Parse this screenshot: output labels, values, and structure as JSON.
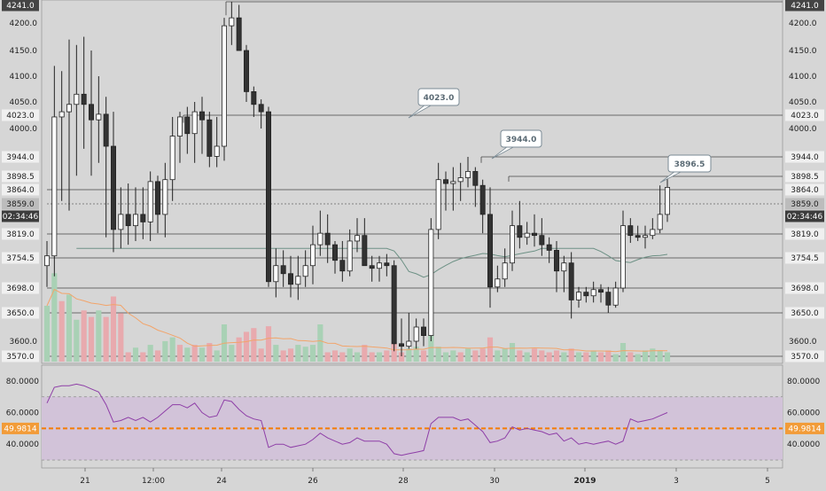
{
  "colors": {
    "background": "#d6d6d6",
    "rsi_band": "#d2c3d9",
    "rsi_line": "#8e3ea7",
    "rsi_mid_line": "#f57c00",
    "rsi_badge": "#f29c38",
    "candle_up_fill": "#ffffff",
    "candle_down_fill": "#333333",
    "volume_up": "#a9d1b5",
    "volume_down": "#e8aaae",
    "ma_line": "#6d9185",
    "volume_ma_line": "#f2a46a",
    "crosshair_badge": "#3c3c3c"
  },
  "price_axis": {
    "ticks": [
      "4241.0",
      "4200.0",
      "4150.0",
      "4100.0",
      "4050.0",
      "4000.0",
      "3600.0"
    ],
    "level_labels": [
      "4023.0",
      "3944.0",
      "3898.5",
      "3864.0",
      "3859.0",
      "3819.0",
      "3754.5",
      "3698.0",
      "3650.0",
      "3570.0"
    ],
    "highlight_label": "3859.0",
    "crosshair_time": "02:34:46"
  },
  "rsi_axis": {
    "ticks": [
      "80.0000",
      "60.0000",
      "40.0000"
    ],
    "current_value": "49.9814"
  },
  "time_axis": {
    "labels": [
      "21",
      "12:00",
      "24",
      "26",
      "28",
      "30",
      "2019",
      "3",
      "5"
    ]
  },
  "callouts": [
    "4023.0",
    "3944.0",
    "3896.5"
  ],
  "chart_data": [
    {
      "type": "candlestick",
      "title": "",
      "ylabel": "",
      "yscale": "compressed-non-linear",
      "horizontal_levels": [
        4241.0,
        4023.0,
        3944.0,
        3898.5,
        3864.0,
        3859.0,
        3819.0,
        3754.5,
        3698.0,
        3650.0,
        3570.0
      ],
      "annotations": [
        {
          "label": "4023.0",
          "price": 4023.0
        },
        {
          "label": "3944.0",
          "price": 3944.0
        },
        {
          "label": "3896.5",
          "price": 3896.5
        }
      ],
      "candles": [
        {
          "o": 3740,
          "h": 3800,
          "l": 3700,
          "c": 3760
        },
        {
          "o": 3760,
          "h": 4120,
          "l": 3720,
          "c": 4020
        },
        {
          "o": 4020,
          "h": 4110,
          "l": 3860,
          "c": 4030
        },
        {
          "o": 4030,
          "h": 4170,
          "l": 3850,
          "c": 4045
        },
        {
          "o": 4045,
          "h": 4160,
          "l": 3900,
          "c": 4065
        },
        {
          "o": 4065,
          "h": 4175,
          "l": 3960,
          "c": 4045
        },
        {
          "o": 4045,
          "h": 4150,
          "l": 3900,
          "c": 4015
        },
        {
          "o": 4015,
          "h": 4100,
          "l": 3930,
          "c": 4025
        },
        {
          "o": 4025,
          "h": 4060,
          "l": 3810,
          "c": 3965
        },
        {
          "o": 3965,
          "h": 4030,
          "l": 3770,
          "c": 3825
        },
        {
          "o": 3825,
          "h": 3870,
          "l": 3780,
          "c": 3845
        },
        {
          "o": 3845,
          "h": 3880,
          "l": 3790,
          "c": 3830
        },
        {
          "o": 3830,
          "h": 3870,
          "l": 3800,
          "c": 3845
        },
        {
          "o": 3845,
          "h": 3870,
          "l": 3805,
          "c": 3835
        },
        {
          "o": 3835,
          "h": 3910,
          "l": 3800,
          "c": 3885
        },
        {
          "o": 3885,
          "h": 3900,
          "l": 3820,
          "c": 3845
        },
        {
          "o": 3845,
          "h": 3930,
          "l": 3810,
          "c": 3890
        },
        {
          "o": 3890,
          "h": 4020,
          "l": 3860,
          "c": 3985
        },
        {
          "o": 3985,
          "h": 4030,
          "l": 3930,
          "c": 4020
        },
        {
          "o": 4020,
          "h": 4040,
          "l": 3950,
          "c": 3990
        },
        {
          "o": 3990,
          "h": 4050,
          "l": 3930,
          "c": 4030
        },
        {
          "o": 4030,
          "h": 4060,
          "l": 3950,
          "c": 4015
        },
        {
          "o": 4015,
          "h": 4030,
          "l": 3920,
          "c": 3945
        },
        {
          "o": 3945,
          "h": 4020,
          "l": 3920,
          "c": 3965
        },
        {
          "o": 3965,
          "h": 4210,
          "l": 3935,
          "c": 4195
        },
        {
          "o": 4195,
          "h": 4241,
          "l": 4160,
          "c": 4210
        },
        {
          "o": 4210,
          "h": 4235,
          "l": 4150,
          "c": 4150
        },
        {
          "o": 4150,
          "h": 4160,
          "l": 4050,
          "c": 4070
        },
        {
          "o": 4070,
          "h": 4080,
          "l": 4020,
          "c": 4045
        },
        {
          "o": 4045,
          "h": 4055,
          "l": 4000,
          "c": 4030
        },
        {
          "o": 4030,
          "h": 4040,
          "l": 3700,
          "c": 3710
        },
        {
          "o": 3710,
          "h": 3780,
          "l": 3680,
          "c": 3740
        },
        {
          "o": 3740,
          "h": 3775,
          "l": 3700,
          "c": 3725
        },
        {
          "o": 3725,
          "h": 3760,
          "l": 3680,
          "c": 3705
        },
        {
          "o": 3705,
          "h": 3760,
          "l": 3675,
          "c": 3720
        },
        {
          "o": 3720,
          "h": 3775,
          "l": 3700,
          "c": 3740
        },
        {
          "o": 3740,
          "h": 3830,
          "l": 3705,
          "c": 3790
        },
        {
          "o": 3790,
          "h": 3850,
          "l": 3760,
          "c": 3820
        },
        {
          "o": 3820,
          "h": 3845,
          "l": 3745,
          "c": 3790
        },
        {
          "o": 3790,
          "h": 3800,
          "l": 3725,
          "c": 3750
        },
        {
          "o": 3750,
          "h": 3800,
          "l": 3710,
          "c": 3730
        },
        {
          "o": 3730,
          "h": 3825,
          "l": 3720,
          "c": 3800
        },
        {
          "o": 3800,
          "h": 3840,
          "l": 3770,
          "c": 3815
        },
        {
          "o": 3815,
          "h": 3840,
          "l": 3740,
          "c": 3740
        },
        {
          "o": 3740,
          "h": 3760,
          "l": 3710,
          "c": 3735
        },
        {
          "o": 3735,
          "h": 3760,
          "l": 3710,
          "c": 3745
        },
        {
          "o": 3745,
          "h": 3765,
          "l": 3720,
          "c": 3740
        },
        {
          "o": 3740,
          "h": 3750,
          "l": 3580,
          "c": 3595
        },
        {
          "o": 3595,
          "h": 3640,
          "l": 3570,
          "c": 3590
        },
        {
          "o": 3590,
          "h": 3650,
          "l": 3585,
          "c": 3600
        },
        {
          "o": 3600,
          "h": 3640,
          "l": 3585,
          "c": 3625
        },
        {
          "o": 3625,
          "h": 3640,
          "l": 3590,
          "c": 3610
        },
        {
          "o": 3610,
          "h": 3840,
          "l": 3600,
          "c": 3825
        },
        {
          "o": 3825,
          "h": 3930,
          "l": 3805,
          "c": 3890
        },
        {
          "o": 3890,
          "h": 3910,
          "l": 3850,
          "c": 3880
        },
        {
          "o": 3880,
          "h": 3920,
          "l": 3850,
          "c": 3885
        },
        {
          "o": 3885,
          "h": 3930,
          "l": 3860,
          "c": 3895
        },
        {
          "o": 3895,
          "h": 3944,
          "l": 3870,
          "c": 3910
        },
        {
          "o": 3910,
          "h": 3920,
          "l": 3855,
          "c": 3875
        },
        {
          "o": 3875,
          "h": 3890,
          "l": 3820,
          "c": 3845
        },
        {
          "o": 3845,
          "h": 3870,
          "l": 3660,
          "c": 3700
        },
        {
          "o": 3700,
          "h": 3740,
          "l": 3690,
          "c": 3715
        },
        {
          "o": 3715,
          "h": 3780,
          "l": 3700,
          "c": 3745
        },
        {
          "o": 3745,
          "h": 3850,
          "l": 3730,
          "c": 3830
        },
        {
          "o": 3830,
          "h": 3860,
          "l": 3780,
          "c": 3810
        },
        {
          "o": 3810,
          "h": 3835,
          "l": 3790,
          "c": 3820
        },
        {
          "o": 3820,
          "h": 3845,
          "l": 3785,
          "c": 3815
        },
        {
          "o": 3815,
          "h": 3840,
          "l": 3760,
          "c": 3790
        },
        {
          "o": 3790,
          "h": 3810,
          "l": 3745,
          "c": 3775
        },
        {
          "o": 3775,
          "h": 3800,
          "l": 3690,
          "c": 3730
        },
        {
          "o": 3730,
          "h": 3760,
          "l": 3690,
          "c": 3745
        },
        {
          "o": 3745,
          "h": 3770,
          "l": 3640,
          "c": 3675
        },
        {
          "o": 3675,
          "h": 3700,
          "l": 3660,
          "c": 3690
        },
        {
          "o": 3690,
          "h": 3700,
          "l": 3670,
          "c": 3683
        },
        {
          "o": 3683,
          "h": 3710,
          "l": 3670,
          "c": 3695
        },
        {
          "o": 3695,
          "h": 3705,
          "l": 3670,
          "c": 3690
        },
        {
          "o": 3690,
          "h": 3700,
          "l": 3650,
          "c": 3665
        },
        {
          "o": 3665,
          "h": 3710,
          "l": 3660,
          "c": 3698
        },
        {
          "o": 3698,
          "h": 3850,
          "l": 3690,
          "c": 3830
        },
        {
          "o": 3830,
          "h": 3840,
          "l": 3795,
          "c": 3815
        },
        {
          "o": 3815,
          "h": 3830,
          "l": 3800,
          "c": 3810
        },
        {
          "o": 3810,
          "h": 3830,
          "l": 3780,
          "c": 3815
        },
        {
          "o": 3815,
          "h": 3840,
          "l": 3805,
          "c": 3825
        },
        {
          "o": 3825,
          "h": 3875,
          "l": 3820,
          "c": 3845
        },
        {
          "o": 3845,
          "h": 3896.5,
          "l": 3835,
          "c": 3870
        }
      ],
      "volume": [
        {
          "v": 60,
          "up": true
        },
        {
          "v": 95,
          "up": true
        },
        {
          "v": 65,
          "up": false
        },
        {
          "v": 72,
          "up": true
        },
        {
          "v": 45,
          "up": true
        },
        {
          "v": 55,
          "up": false
        },
        {
          "v": 48,
          "up": false
        },
        {
          "v": 55,
          "up": true
        },
        {
          "v": 48,
          "up": false
        },
        {
          "v": 70,
          "up": false
        },
        {
          "v": 52,
          "up": false
        },
        {
          "v": 10,
          "up": false
        },
        {
          "v": 15,
          "up": true
        },
        {
          "v": 10,
          "up": false
        },
        {
          "v": 18,
          "up": true
        },
        {
          "v": 12,
          "up": false
        },
        {
          "v": 22,
          "up": true
        },
        {
          "v": 26,
          "up": true
        },
        {
          "v": 18,
          "up": false
        },
        {
          "v": 15,
          "up": true
        },
        {
          "v": 18,
          "up": false
        },
        {
          "v": 15,
          "up": true
        },
        {
          "v": 20,
          "up": false
        },
        {
          "v": 12,
          "up": true
        },
        {
          "v": 40,
          "up": true
        },
        {
          "v": 18,
          "up": true
        },
        {
          "v": 26,
          "up": false
        },
        {
          "v": 32,
          "up": false
        },
        {
          "v": 36,
          "up": false
        },
        {
          "v": 14,
          "up": false
        },
        {
          "v": 38,
          "up": false
        },
        {
          "v": 18,
          "up": true
        },
        {
          "v": 12,
          "up": false
        },
        {
          "v": 14,
          "up": false
        },
        {
          "v": 18,
          "up": true
        },
        {
          "v": 16,
          "up": true
        },
        {
          "v": 18,
          "up": true
        },
        {
          "v": 40,
          "up": true
        },
        {
          "v": 10,
          "up": false
        },
        {
          "v": 12,
          "up": false
        },
        {
          "v": 10,
          "up": false
        },
        {
          "v": 14,
          "up": true
        },
        {
          "v": 10,
          "up": true
        },
        {
          "v": 18,
          "up": false
        },
        {
          "v": 10,
          "up": false
        },
        {
          "v": 10,
          "up": true
        },
        {
          "v": 12,
          "up": false
        },
        {
          "v": 20,
          "up": false
        },
        {
          "v": 10,
          "up": false
        },
        {
          "v": 14,
          "up": true
        },
        {
          "v": 16,
          "up": true
        },
        {
          "v": 12,
          "up": false
        },
        {
          "v": 30,
          "up": true
        },
        {
          "v": 16,
          "up": true
        },
        {
          "v": 10,
          "up": true
        },
        {
          "v": 12,
          "up": true
        },
        {
          "v": 10,
          "up": false
        },
        {
          "v": 14,
          "up": true
        },
        {
          "v": 12,
          "up": false
        },
        {
          "v": 14,
          "up": false
        },
        {
          "v": 26,
          "up": false
        },
        {
          "v": 12,
          "up": true
        },
        {
          "v": 14,
          "up": true
        },
        {
          "v": 20,
          "up": true
        },
        {
          "v": 12,
          "up": false
        },
        {
          "v": 10,
          "up": true
        },
        {
          "v": 14,
          "up": false
        },
        {
          "v": 12,
          "up": false
        },
        {
          "v": 10,
          "up": false
        },
        {
          "v": 12,
          "up": false
        },
        {
          "v": 10,
          "up": true
        },
        {
          "v": 14,
          "up": false
        },
        {
          "v": 10,
          "up": true
        },
        {
          "v": 10,
          "up": false
        },
        {
          "v": 12,
          "up": true
        },
        {
          "v": 10,
          "up": false
        },
        {
          "v": 12,
          "up": false
        },
        {
          "v": 8,
          "up": true
        },
        {
          "v": 20,
          "up": true
        },
        {
          "v": 10,
          "up": false
        },
        {
          "v": 8,
          "up": true
        },
        {
          "v": 12,
          "up": true
        },
        {
          "v": 14,
          "up": true
        },
        {
          "v": 12,
          "up": true
        },
        {
          "v": 10,
          "up": true
        }
      ]
    },
    {
      "type": "line",
      "title": "",
      "ylim": [
        25,
        90
      ],
      "bands": [
        30,
        70
      ],
      "values": [
        66,
        76,
        77,
        77,
        78,
        77,
        75,
        73,
        65,
        54,
        55,
        57,
        55,
        57,
        54,
        57,
        61,
        65,
        65,
        63,
        66,
        60,
        57,
        58,
        68,
        67,
        62,
        58,
        56,
        55,
        38,
        40,
        40,
        38,
        39,
        40,
        43,
        47,
        44,
        42,
        40,
        41,
        44,
        42,
        42,
        42,
        40,
        34,
        33,
        34,
        35,
        36,
        53,
        57,
        57,
        57,
        55,
        56,
        52,
        48,
        41,
        42,
        44,
        51,
        49,
        50,
        49,
        48,
        46,
        47,
        42,
        44,
        40,
        41,
        40,
        41,
        42,
        40,
        42,
        56,
        54,
        55,
        56,
        58,
        60
      ]
    }
  ]
}
